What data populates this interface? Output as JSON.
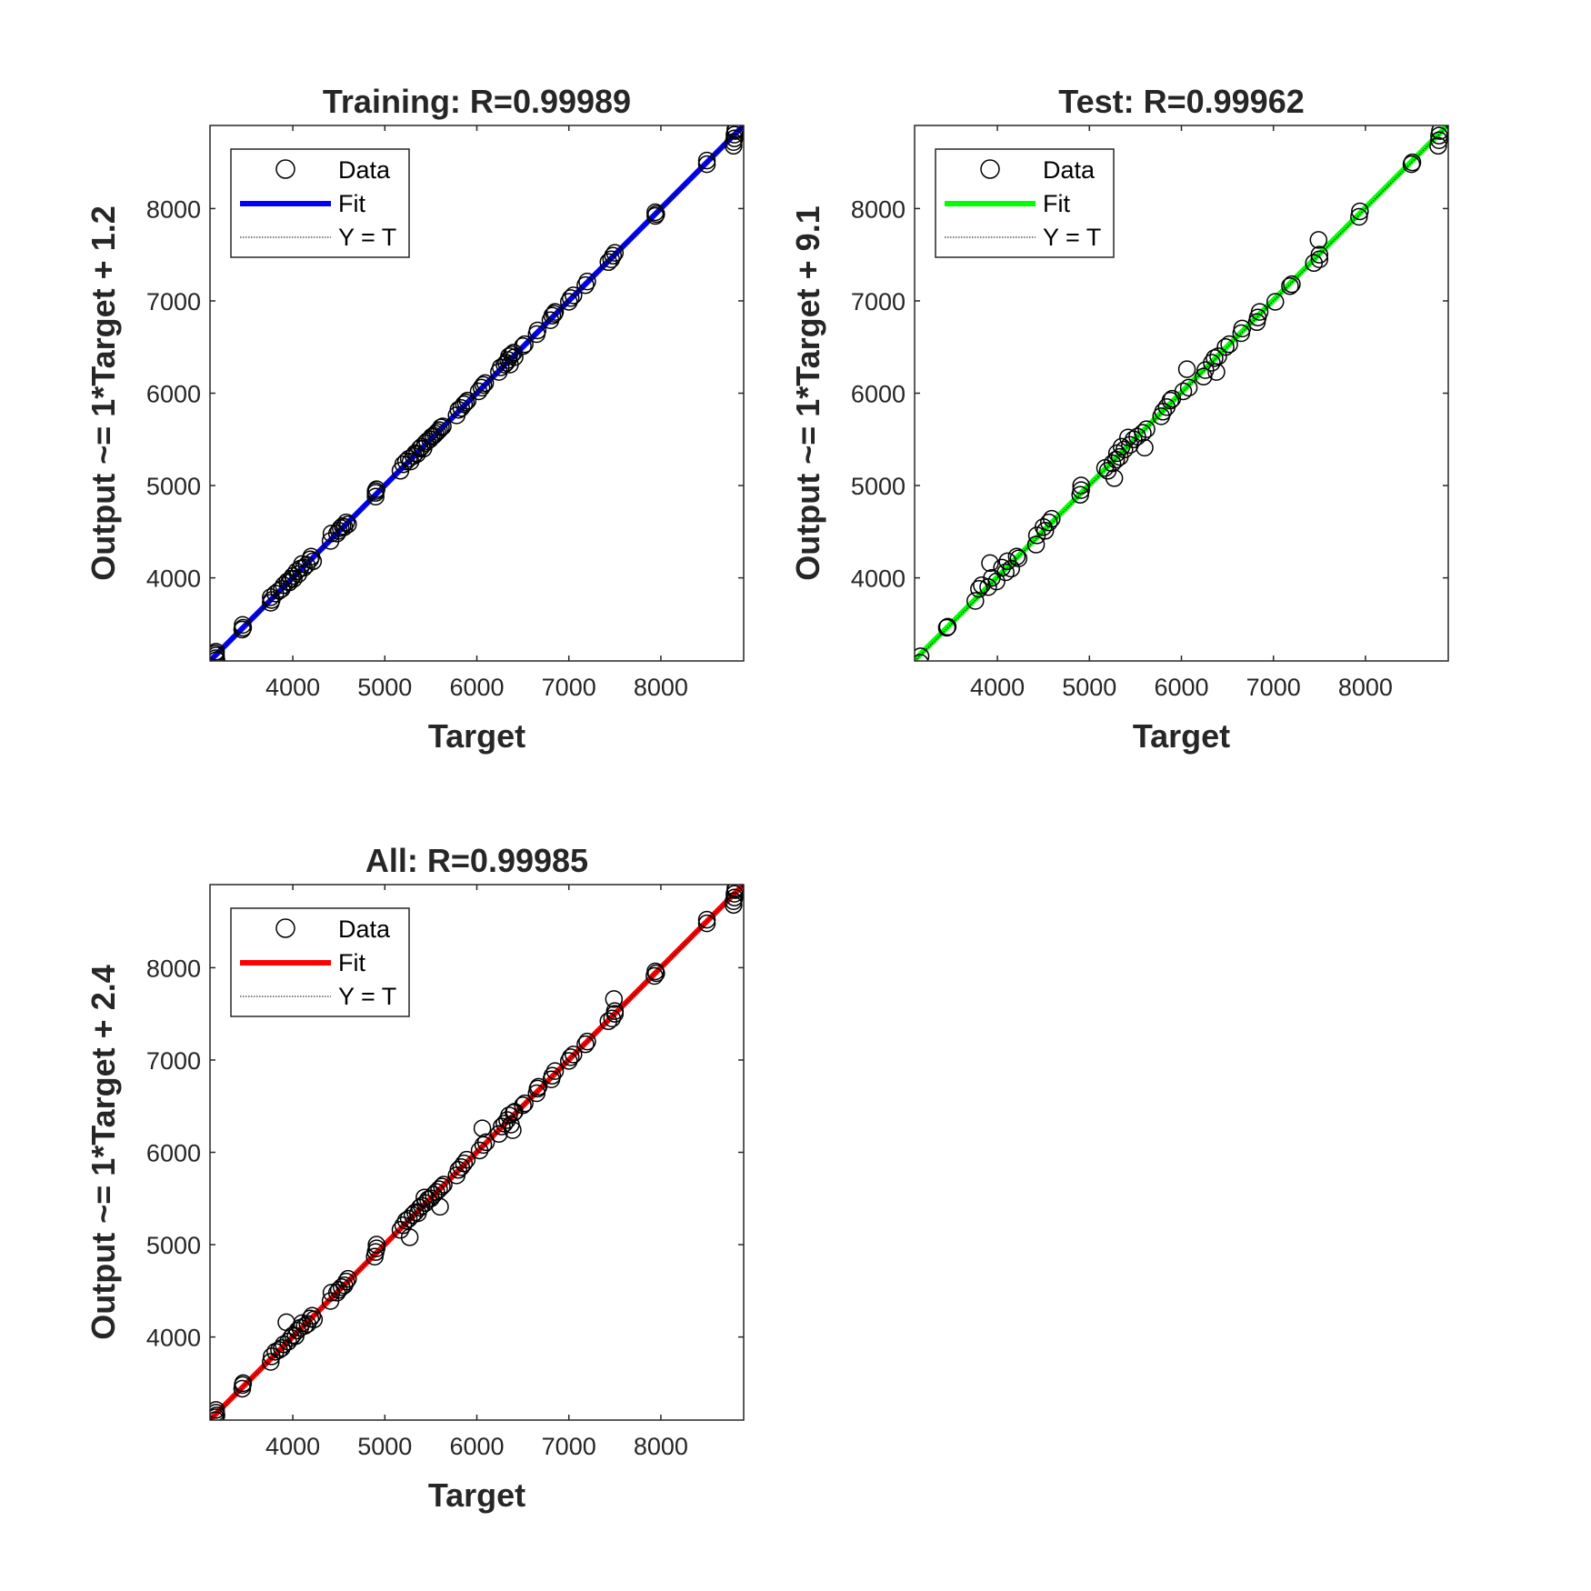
{
  "chart_data": [
    {
      "type": "scatter",
      "title": "Training: R=0.99989",
      "xlabel": "Target",
      "ylabel": "Output ~= 1*Target + 1.2",
      "xlim": [
        3100,
        8900
      ],
      "ylim": [
        3100,
        8900
      ],
      "xticks": [
        4000,
        5000,
        6000,
        7000,
        8000
      ],
      "yticks": [
        4000,
        5000,
        6000,
        7000,
        8000
      ],
      "grid": false,
      "legend_position": "top-left",
      "legend": [
        "Data",
        "Fit",
        "Y = T"
      ],
      "fit": {
        "slope": 1,
        "intercept": 1.2,
        "color": "#0000ff"
      },
      "identity_line": true,
      "points": [
        [
          3160,
          3130
        ],
        [
          3160,
          3180
        ],
        [
          3165,
          3200
        ],
        [
          3170,
          3110
        ],
        [
          3165,
          3160
        ],
        [
          3450,
          3440
        ],
        [
          3455,
          3490
        ],
        [
          3460,
          3460
        ],
        [
          3760,
          3730
        ],
        [
          3760,
          3790
        ],
        [
          3770,
          3760
        ],
        [
          3810,
          3830
        ],
        [
          3850,
          3860
        ],
        [
          3880,
          3880
        ],
        [
          3900,
          3920
        ],
        [
          3940,
          3960
        ],
        [
          3960,
          3950
        ],
        [
          3980,
          3990
        ],
        [
          4000,
          4020
        ],
        [
          4010,
          3990
        ],
        [
          4040,
          4070
        ],
        [
          4060,
          4040
        ],
        [
          4080,
          4100
        ],
        [
          4100,
          4150
        ],
        [
          4120,
          4110
        ],
        [
          4150,
          4140
        ],
        [
          4190,
          4200
        ],
        [
          4200,
          4230
        ],
        [
          4220,
          4180
        ],
        [
          4410,
          4400
        ],
        [
          4420,
          4480
        ],
        [
          4480,
          4480
        ],
        [
          4500,
          4510
        ],
        [
          4520,
          4540
        ],
        [
          4540,
          4560
        ],
        [
          4560,
          4550
        ],
        [
          4580,
          4600
        ],
        [
          4600,
          4580
        ],
        [
          4900,
          4880
        ],
        [
          4900,
          4940
        ],
        [
          4910,
          4960
        ],
        [
          4900,
          4920
        ],
        [
          5170,
          5160
        ],
        [
          5200,
          5230
        ],
        [
          5230,
          5260
        ],
        [
          5260,
          5290
        ],
        [
          5280,
          5260
        ],
        [
          5310,
          5320
        ],
        [
          5330,
          5350
        ],
        [
          5350,
          5340
        ],
        [
          5380,
          5400
        ],
        [
          5400,
          5420
        ],
        [
          5420,
          5400
        ],
        [
          5440,
          5460
        ],
        [
          5460,
          5480
        ],
        [
          5490,
          5500
        ],
        [
          5510,
          5530
        ],
        [
          5530,
          5540
        ],
        [
          5550,
          5560
        ],
        [
          5570,
          5580
        ],
        [
          5590,
          5600
        ],
        [
          5610,
          5630
        ],
        [
          5630,
          5640
        ],
        [
          5780,
          5760
        ],
        [
          5800,
          5820
        ],
        [
          5830,
          5840
        ],
        [
          5860,
          5880
        ],
        [
          5880,
          5900
        ],
        [
          5900,
          5920
        ],
        [
          6020,
          6020
        ],
        [
          6050,
          6060
        ],
        [
          6070,
          6090
        ],
        [
          6090,
          6110
        ],
        [
          6240,
          6230
        ],
        [
          6260,
          6280
        ],
        [
          6300,
          6310
        ],
        [
          6320,
          6330
        ],
        [
          6340,
          6360
        ],
        [
          6350,
          6400
        ],
        [
          6360,
          6310
        ],
        [
          6380,
          6420
        ],
        [
          6400,
          6440
        ],
        [
          6410,
          6390
        ],
        [
          6500,
          6510
        ],
        [
          6520,
          6530
        ],
        [
          6650,
          6640
        ],
        [
          6660,
          6680
        ],
        [
          6800,
          6790
        ],
        [
          6820,
          6840
        ],
        [
          6840,
          6860
        ],
        [
          6850,
          6880
        ],
        [
          7000,
          6990
        ],
        [
          7020,
          7030
        ],
        [
          7050,
          7060
        ],
        [
          7180,
          7170
        ],
        [
          7200,
          7210
        ],
        [
          7430,
          7420
        ],
        [
          7460,
          7450
        ],
        [
          7480,
          7490
        ],
        [
          7500,
          7520
        ],
        [
          7940,
          7920
        ],
        [
          7940,
          7960
        ],
        [
          7950,
          7940
        ],
        [
          8500,
          8480
        ],
        [
          8500,
          8520
        ],
        [
          8790,
          8680
        ],
        [
          8790,
          8720
        ],
        [
          8800,
          8760
        ],
        [
          8800,
          8800
        ],
        [
          8810,
          8840
        ],
        [
          8810,
          8860
        ]
      ]
    },
    {
      "type": "scatter",
      "title": "Test: R=0.99962",
      "xlabel": "Target",
      "ylabel": "Output ~= 1*Target + 9.1",
      "xlim": [
        3100,
        8900
      ],
      "ylim": [
        3100,
        8900
      ],
      "xticks": [
        4000,
        5000,
        6000,
        7000,
        8000
      ],
      "yticks": [
        4000,
        5000,
        6000,
        7000,
        8000
      ],
      "grid": false,
      "legend_position": "top-left",
      "legend": [
        "Data",
        "Fit",
        "Y = T"
      ],
      "fit": {
        "slope": 1,
        "intercept": 9.1,
        "color": "#00ff00"
      },
      "identity_line": true,
      "points": [
        [
          3160,
          3080
        ],
        [
          3165,
          3150
        ],
        [
          3450,
          3460
        ],
        [
          3460,
          3470
        ],
        [
          3760,
          3750
        ],
        [
          3800,
          3880
        ],
        [
          3830,
          3920
        ],
        [
          3900,
          3900
        ],
        [
          3920,
          4160
        ],
        [
          3940,
          4000
        ],
        [
          3990,
          3960
        ],
        [
          4050,
          4110
        ],
        [
          4090,
          4060
        ],
        [
          4110,
          4180
        ],
        [
          4150,
          4100
        ],
        [
          4210,
          4230
        ],
        [
          4230,
          4210
        ],
        [
          4420,
          4360
        ],
        [
          4430,
          4460
        ],
        [
          4500,
          4550
        ],
        [
          4520,
          4510
        ],
        [
          4560,
          4600
        ],
        [
          4590,
          4640
        ],
        [
          4900,
          4900
        ],
        [
          4910,
          5000
        ],
        [
          4910,
          4950
        ],
        [
          5170,
          5190
        ],
        [
          5200,
          5160
        ],
        [
          5250,
          5240
        ],
        [
          5270,
          5080
        ],
        [
          5290,
          5280
        ],
        [
          5300,
          5350
        ],
        [
          5330,
          5310
        ],
        [
          5350,
          5420
        ],
        [
          5380,
          5390
        ],
        [
          5420,
          5520
        ],
        [
          5440,
          5440
        ],
        [
          5480,
          5500
        ],
        [
          5520,
          5530
        ],
        [
          5580,
          5570
        ],
        [
          5600,
          5410
        ],
        [
          5620,
          5610
        ],
        [
          5780,
          5750
        ],
        [
          5800,
          5800
        ],
        [
          5840,
          5850
        ],
        [
          5880,
          5920
        ],
        [
          5900,
          5940
        ],
        [
          6020,
          6020
        ],
        [
          6060,
          6260
        ],
        [
          6080,
          6060
        ],
        [
          6240,
          6180
        ],
        [
          6260,
          6250
        ],
        [
          6330,
          6330
        ],
        [
          6360,
          6380
        ],
        [
          6380,
          6230
        ],
        [
          6400,
          6400
        ],
        [
          6480,
          6500
        ],
        [
          6520,
          6530
        ],
        [
          6650,
          6650
        ],
        [
          6660,
          6700
        ],
        [
          6820,
          6770
        ],
        [
          6830,
          6820
        ],
        [
          6850,
          6880
        ],
        [
          7020,
          6990
        ],
        [
          7180,
          7160
        ],
        [
          7200,
          7180
        ],
        [
          7440,
          7410
        ],
        [
          7490,
          7660
        ],
        [
          7500,
          7450
        ],
        [
          7500,
          7500
        ],
        [
          7930,
          7910
        ],
        [
          7940,
          7970
        ],
        [
          8500,
          8480
        ],
        [
          8510,
          8500
        ],
        [
          8790,
          8680
        ],
        [
          8800,
          8740
        ],
        [
          8800,
          8790
        ],
        [
          8810,
          8840
        ]
      ]
    },
    {
      "type": "scatter",
      "title": "All: R=0.99985",
      "xlabel": "Target",
      "ylabel": "Output ~= 1*Target + 2.4",
      "xlim": [
        3100,
        8900
      ],
      "ylim": [
        3100,
        8900
      ],
      "xticks": [
        4000,
        5000,
        6000,
        7000,
        8000
      ],
      "yticks": [
        4000,
        5000,
        6000,
        7000,
        8000
      ],
      "grid": false,
      "legend_position": "top-left",
      "legend": [
        "Data",
        "Fit",
        "Y = T"
      ],
      "fit": {
        "slope": 1,
        "intercept": 2.4,
        "color": "#ff0000"
      },
      "identity_line": true,
      "points": [
        [
          3160,
          3100
        ],
        [
          3160,
          3130
        ],
        [
          3165,
          3180
        ],
        [
          3165,
          3210
        ],
        [
          3170,
          3150
        ],
        [
          3450,
          3440
        ],
        [
          3455,
          3480
        ],
        [
          3460,
          3500
        ],
        [
          3760,
          3730
        ],
        [
          3770,
          3790
        ],
        [
          3810,
          3840
        ],
        [
          3850,
          3860
        ],
        [
          3880,
          3880
        ],
        [
          3900,
          3920
        ],
        [
          3930,
          4160
        ],
        [
          3950,
          3950
        ],
        [
          3980,
          3990
        ],
        [
          4000,
          4020
        ],
        [
          4030,
          4010
        ],
        [
          4050,
          4070
        ],
        [
          4080,
          4100
        ],
        [
          4100,
          4150
        ],
        [
          4130,
          4120
        ],
        [
          4160,
          4140
        ],
        [
          4190,
          4200
        ],
        [
          4210,
          4230
        ],
        [
          4230,
          4190
        ],
        [
          4410,
          4390
        ],
        [
          4420,
          4480
        ],
        [
          4480,
          4480
        ],
        [
          4500,
          4510
        ],
        [
          4530,
          4540
        ],
        [
          4560,
          4560
        ],
        [
          4580,
          4600
        ],
        [
          4600,
          4630
        ],
        [
          4890,
          4870
        ],
        [
          4900,
          4920
        ],
        [
          4910,
          4960
        ],
        [
          4910,
          5000
        ],
        [
          5170,
          5160
        ],
        [
          5200,
          5210
        ],
        [
          5230,
          5260
        ],
        [
          5260,
          5280
        ],
        [
          5270,
          5080
        ],
        [
          5300,
          5320
        ],
        [
          5330,
          5350
        ],
        [
          5360,
          5340
        ],
        [
          5380,
          5400
        ],
        [
          5400,
          5420
        ],
        [
          5430,
          5510
        ],
        [
          5440,
          5450
        ],
        [
          5470,
          5490
        ],
        [
          5500,
          5500
        ],
        [
          5530,
          5540
        ],
        [
          5560,
          5570
        ],
        [
          5590,
          5600
        ],
        [
          5600,
          5410
        ],
        [
          5620,
          5630
        ],
        [
          5640,
          5650
        ],
        [
          5780,
          5750
        ],
        [
          5800,
          5810
        ],
        [
          5830,
          5840
        ],
        [
          5860,
          5880
        ],
        [
          5890,
          5920
        ],
        [
          6030,
          6020
        ],
        [
          6060,
          6260
        ],
        [
          6070,
          6080
        ],
        [
          6100,
          6110
        ],
        [
          6240,
          6200
        ],
        [
          6270,
          6280
        ],
        [
          6300,
          6310
        ],
        [
          6330,
          6350
        ],
        [
          6350,
          6400
        ],
        [
          6370,
          6300
        ],
        [
          6390,
          6240
        ],
        [
          6400,
          6430
        ],
        [
          6410,
          6440
        ],
        [
          6500,
          6510
        ],
        [
          6520,
          6530
        ],
        [
          6650,
          6640
        ],
        [
          6660,
          6690
        ],
        [
          6670,
          6710
        ],
        [
          6810,
          6790
        ],
        [
          6820,
          6830
        ],
        [
          6850,
          6880
        ],
        [
          7000,
          6990
        ],
        [
          7020,
          7030
        ],
        [
          7050,
          7060
        ],
        [
          7180,
          7170
        ],
        [
          7200,
          7200
        ],
        [
          7430,
          7420
        ],
        [
          7470,
          7450
        ],
        [
          7490,
          7660
        ],
        [
          7500,
          7500
        ],
        [
          7500,
          7530
        ],
        [
          7930,
          7910
        ],
        [
          7940,
          7960
        ],
        [
          7950,
          7940
        ],
        [
          8500,
          8480
        ],
        [
          8500,
          8520
        ],
        [
          8790,
          8680
        ],
        [
          8790,
          8720
        ],
        [
          8800,
          8760
        ],
        [
          8800,
          8800
        ],
        [
          8810,
          8840
        ],
        [
          8810,
          8860
        ]
      ]
    }
  ]
}
